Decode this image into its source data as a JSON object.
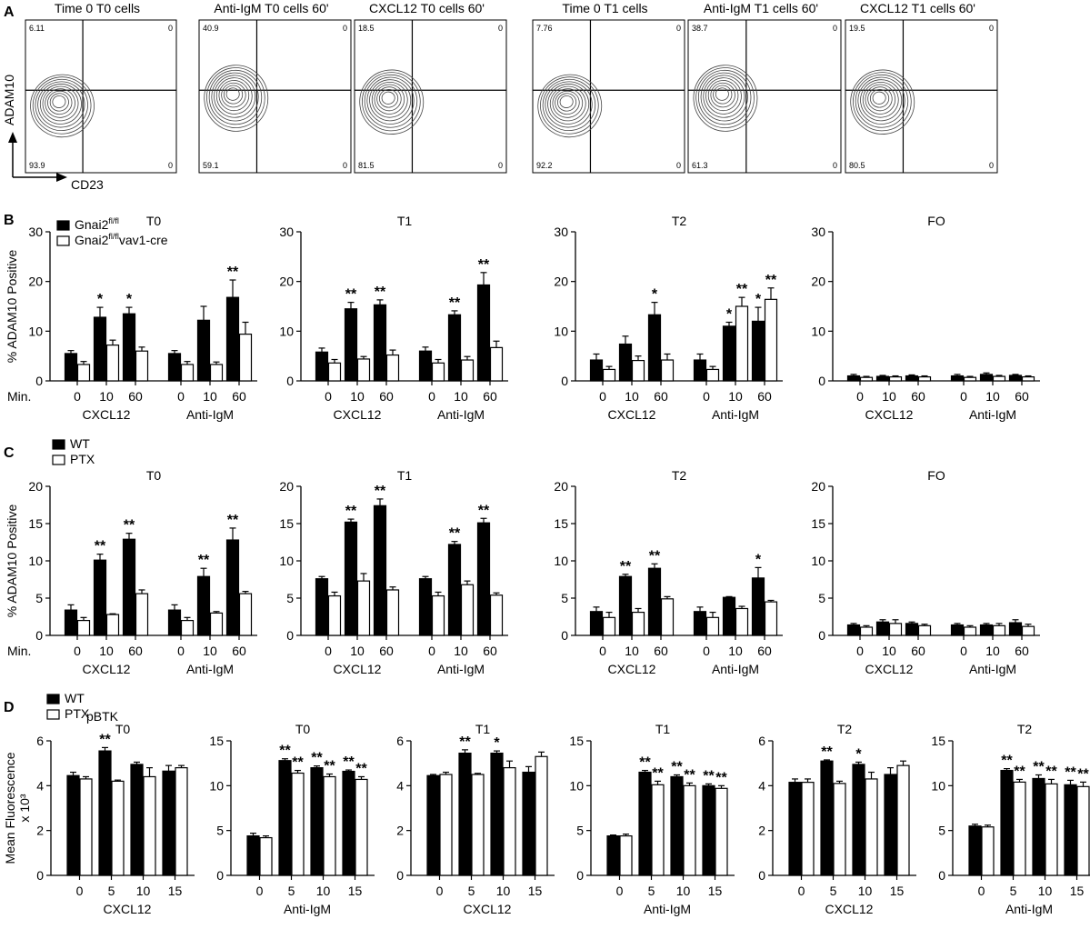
{
  "panel_letters": {
    "A": "A",
    "B": "B",
    "C": "C",
    "D": "D"
  },
  "flow": {
    "y_axis_label": "ADAM10",
    "x_axis_label": "CD23",
    "plots": [
      {
        "title": "Time 0  T0 cells",
        "ul": "6.11",
        "ur": "0",
        "ll": "93.9",
        "lr": "0",
        "contour_level": 0.35
      },
      {
        "title": "Anti-IgM T0 cells   60'",
        "ul": "40.9",
        "ur": "0",
        "ll": "59.1",
        "lr": "0",
        "contour_level": 0.55
      },
      {
        "title": "CXCL12 T0 cells   60'",
        "ul": "18.5",
        "ur": "0",
        "ll": "81.5",
        "lr": "0",
        "contour_level": 0.45
      },
      {
        "title": "Time 0   T1 cells",
        "ul": "7.76",
        "ur": "0",
        "ll": "92.2",
        "lr": "0",
        "contour_level": 0.35
      },
      {
        "title": "Anti-IgM T1 cells   60'",
        "ul": "38.7",
        "ur": "0",
        "ll": "61.3",
        "lr": "0",
        "contour_level": 0.55
      },
      {
        "title": "CXCL12 T1 cells   60'",
        "ul": "19.5",
        "ur": "0",
        "ll": "80.5",
        "lr": "0",
        "contour_level": 0.45
      }
    ]
  },
  "chart_data": [
    {
      "panel": "B",
      "type": "bar",
      "title": "T0",
      "ylabel": "% ADAM10 Positive",
      "ylim": [
        0,
        30
      ],
      "yticks": [
        0,
        10,
        20,
        30
      ],
      "row_label": "Min.",
      "categories": [
        "0",
        "10",
        "60",
        "0",
        "10",
        "60"
      ],
      "groups": [
        "CXCL12",
        "Anti-IgM"
      ],
      "series": [
        {
          "name": "Gnai2fl/fl",
          "values": [
            5.5,
            12.8,
            13.5,
            5.5,
            12.2,
            16.8
          ],
          "errors": [
            0.6,
            2,
            1.3,
            0.6,
            2.8,
            3.5
          ]
        },
        {
          "name": "Gnai2fl/flvav1-cre",
          "values": [
            3.3,
            7.2,
            6,
            3.3,
            3.3,
            9.4
          ],
          "errors": [
            0.6,
            1,
            0.8,
            0.6,
            0.5,
            2.4
          ]
        }
      ],
      "significance": [
        [
          "",
          "*",
          "*",
          "",
          "",
          "**"
        ],
        [
          "",
          "",
          "",
          "",
          "",
          ""
        ]
      ]
    },
    {
      "panel": "B",
      "type": "bar",
      "title": "T1",
      "ylabel": "",
      "ylim": [
        0,
        30
      ],
      "yticks": [
        0,
        10,
        20,
        30
      ],
      "categories": [
        "0",
        "10",
        "60",
        "0",
        "10",
        "60"
      ],
      "groups": [
        "CXCL12",
        "Anti-IgM"
      ],
      "series": [
        {
          "name": "Gnai2fl/fl",
          "values": [
            5.8,
            14.5,
            15.3,
            6,
            13.3,
            19.3
          ],
          "errors": [
            0.8,
            1.3,
            1,
            0.8,
            0.8,
            2.5
          ]
        },
        {
          "name": "Gnai2fl/flvav1-cre",
          "values": [
            3.6,
            4.4,
            5.2,
            3.6,
            4.2,
            6.7
          ],
          "errors": [
            0.7,
            0.5,
            1,
            0.7,
            0.7,
            1.3
          ]
        }
      ],
      "significance": [
        [
          "",
          "**",
          "**",
          "",
          "**",
          "**"
        ],
        [
          "",
          "",
          "",
          "",
          "",
          ""
        ]
      ]
    },
    {
      "panel": "B",
      "type": "bar",
      "title": "T2",
      "ylabel": "",
      "ylim": [
        0,
        30
      ],
      "yticks": [
        0,
        10,
        20,
        30
      ],
      "categories": [
        "0",
        "10",
        "60",
        "0",
        "10",
        "60"
      ],
      "groups": [
        "CXCL12",
        "Anti-IgM"
      ],
      "series": [
        {
          "name": "Gnai2fl/fl",
          "values": [
            4.2,
            7.4,
            13.3,
            4.2,
            11,
            12
          ],
          "errors": [
            1.2,
            1.6,
            2.5,
            1.2,
            0.8,
            2.8
          ]
        },
        {
          "name": "Gnai2fl/flvav1-cre",
          "values": [
            2.3,
            4.1,
            4.2,
            2.3,
            15,
            16.4
          ],
          "errors": [
            0.6,
            0.9,
            1.2,
            0.6,
            1.8,
            2.3
          ]
        }
      ],
      "significance": [
        [
          "",
          "",
          "*",
          "",
          "*",
          "*"
        ],
        [
          "",
          "",
          "",
          "",
          "**",
          "**"
        ]
      ]
    },
    {
      "panel": "B",
      "type": "bar",
      "title": "FO",
      "ylabel": "",
      "ylim": [
        0,
        30
      ],
      "yticks": [
        0,
        10,
        20,
        30
      ],
      "categories": [
        "0",
        "10",
        "60",
        "0",
        "10",
        "60"
      ],
      "groups": [
        "CXCL12",
        "Anti-IgM"
      ],
      "series": [
        {
          "name": "Gnai2fl/fl",
          "values": [
            1,
            0.9,
            1,
            1,
            1.3,
            1.1
          ],
          "errors": [
            0.3,
            0.2,
            0.2,
            0.3,
            0.3,
            0.2
          ]
        },
        {
          "name": "Gnai2fl/flvav1-cre",
          "values": [
            0.7,
            0.8,
            0.8,
            0.7,
            0.9,
            0.8
          ],
          "errors": [
            0.2,
            0.2,
            0.2,
            0.2,
            0.2,
            0.2
          ]
        }
      ],
      "significance": [
        [
          "",
          "",
          "",
          "",
          "",
          ""
        ],
        [
          "",
          "",
          "",
          "",
          "",
          ""
        ]
      ]
    },
    {
      "panel": "C",
      "type": "bar",
      "title": "T0",
      "ylabel": "% ADAM10 Positive",
      "ylim": [
        0,
        20
      ],
      "yticks": [
        0,
        5,
        10,
        15,
        20
      ],
      "row_label": "Min.",
      "categories": [
        "0",
        "10",
        "60",
        "0",
        "10",
        "60"
      ],
      "groups": [
        "CXCL12",
        "Anti-IgM"
      ],
      "series": [
        {
          "name": "WT",
          "values": [
            3.4,
            10.1,
            12.9,
            3.4,
            7.9,
            12.8
          ],
          "errors": [
            0.7,
            0.8,
            0.8,
            0.7,
            1.1,
            1.6
          ]
        },
        {
          "name": "PTX",
          "values": [
            2,
            2.8,
            5.6,
            2,
            3,
            5.6
          ],
          "errors": [
            0.4,
            0.1,
            0.5,
            0.4,
            0.2,
            0.3
          ]
        }
      ],
      "significance": [
        [
          "",
          "**",
          "**",
          "",
          "**",
          "**"
        ],
        [
          "",
          "",
          "",
          "",
          "",
          ""
        ]
      ]
    },
    {
      "panel": "C",
      "type": "bar",
      "title": "T1",
      "ylabel": "",
      "ylim": [
        0,
        20
      ],
      "yticks": [
        0,
        5,
        10,
        15,
        20
      ],
      "categories": [
        "0",
        "10",
        "60",
        "0",
        "10",
        "60"
      ],
      "groups": [
        "CXCL12",
        "Anti-IgM"
      ],
      "series": [
        {
          "name": "WT",
          "values": [
            7.6,
            15.2,
            17.4,
            7.6,
            12.2,
            15.1
          ],
          "errors": [
            0.3,
            0.4,
            0.9,
            0.3,
            0.4,
            0.6
          ]
        },
        {
          "name": "PTX",
          "values": [
            5.3,
            7.3,
            6.1,
            5.3,
            6.8,
            5.4
          ],
          "errors": [
            0.5,
            1,
            0.4,
            0.5,
            0.5,
            0.3
          ]
        }
      ],
      "significance": [
        [
          "",
          "**",
          "**",
          "",
          "**",
          "**"
        ],
        [
          "",
          "",
          "",
          "",
          "",
          ""
        ]
      ]
    },
    {
      "panel": "C",
      "type": "bar",
      "title": "T2",
      "ylabel": "",
      "ylim": [
        0,
        20
      ],
      "yticks": [
        0,
        5,
        10,
        15,
        20
      ],
      "categories": [
        "0",
        "10",
        "60",
        "0",
        "10",
        "60"
      ],
      "groups": [
        "CXCL12",
        "Anti-IgM"
      ],
      "series": [
        {
          "name": "WT",
          "values": [
            3.2,
            7.9,
            9,
            3.2,
            5.1,
            7.7
          ],
          "errors": [
            0.6,
            0.3,
            0.6,
            0.6,
            0.1,
            1.4
          ]
        },
        {
          "name": "PTX",
          "values": [
            2.4,
            3.1,
            4.9,
            2.4,
            3.6,
            4.5
          ],
          "errors": [
            0.7,
            0.5,
            0.3,
            0.7,
            0.3,
            0.2
          ]
        }
      ],
      "significance": [
        [
          "",
          "**",
          "**",
          "",
          "",
          "*"
        ],
        [
          "",
          "",
          "",
          "",
          "",
          ""
        ]
      ]
    },
    {
      "panel": "C",
      "type": "bar",
      "title": "FO",
      "ylabel": "",
      "ylim": [
        0,
        20
      ],
      "yticks": [
        0,
        5,
        10,
        15,
        20
      ],
      "categories": [
        "0",
        "10",
        "60",
        "0",
        "10",
        "60"
      ],
      "groups": [
        "CXCL12",
        "Anti-IgM"
      ],
      "series": [
        {
          "name": "WT",
          "values": [
            1.4,
            1.8,
            1.6,
            1.4,
            1.4,
            1.7
          ],
          "errors": [
            0.2,
            0.3,
            0.2,
            0.2,
            0.2,
            0.4
          ]
        },
        {
          "name": "PTX",
          "values": [
            1.1,
            1.6,
            1.3,
            1.1,
            1.3,
            1.2
          ],
          "errors": [
            0.2,
            0.5,
            0.2,
            0.2,
            0.3,
            0.3
          ]
        }
      ],
      "significance": [
        [
          "",
          "",
          "",
          "",
          "",
          ""
        ],
        [
          "",
          "",
          "",
          "",
          "",
          ""
        ]
      ]
    },
    {
      "panel": "D",
      "type": "bar",
      "title": "T0",
      "ylabel": "Mean Fluorescence x 10³",
      "ylim": [
        0,
        6
      ],
      "yticks": [
        0,
        2,
        4,
        6
      ],
      "categories": [
        "0",
        "5",
        "10",
        "15"
      ],
      "groups": [
        "CXCL12"
      ],
      "series": [
        {
          "name": "WT",
          "values": [
            4.45,
            5.55,
            4.95,
            4.65
          ],
          "errors": [
            0.15,
            0.15,
            0.1,
            0.25
          ]
        },
        {
          "name": "PTX",
          "values": [
            4.3,
            4.2,
            4.4,
            4.8
          ],
          "errors": [
            0.1,
            0.05,
            0.4,
            0.1
          ]
        }
      ],
      "significance": [
        [
          "",
          "**",
          "",
          ""
        ],
        [
          "",
          "",
          "",
          ""
        ]
      ]
    },
    {
      "panel": "D",
      "type": "bar",
      "title": "T0",
      "ylabel": "",
      "ylim": [
        0,
        15
      ],
      "yticks": [
        0,
        5,
        10,
        15
      ],
      "categories": [
        "0",
        "5",
        "10",
        "15"
      ],
      "groups": [
        "Anti-IgM"
      ],
      "series": [
        {
          "name": "WT",
          "values": [
            4.4,
            12.8,
            12,
            11.6
          ],
          "errors": [
            0.3,
            0.2,
            0.2,
            0.15
          ]
        },
        {
          "name": "PTX",
          "values": [
            4.2,
            11.4,
            11,
            10.7
          ],
          "errors": [
            0.2,
            0.3,
            0.3,
            0.3
          ]
        }
      ],
      "significance": [
        [
          "",
          "**",
          "**",
          "**"
        ],
        [
          "",
          "**",
          "**",
          "**"
        ]
      ]
    },
    {
      "panel": "D",
      "type": "bar",
      "title": "T1",
      "ylabel": "",
      "ylim": [
        0,
        6
      ],
      "yticks": [
        0,
        2,
        4,
        6
      ],
      "categories": [
        "0",
        "5",
        "10",
        "15"
      ],
      "groups": [
        "CXCL12"
      ],
      "series": [
        {
          "name": "WT",
          "values": [
            4.45,
            5.45,
            5.45,
            4.6
          ],
          "errors": [
            0.05,
            0.15,
            0.1,
            0.25
          ]
        },
        {
          "name": "PTX",
          "values": [
            4.5,
            4.5,
            4.8,
            5.3
          ],
          "errors": [
            0.1,
            0.05,
            0.3,
            0.2
          ]
        }
      ],
      "significance": [
        [
          "",
          "**",
          "*",
          ""
        ],
        [
          "",
          "",
          "",
          ""
        ]
      ]
    },
    {
      "panel": "D",
      "type": "bar",
      "title": "T1",
      "ylabel": "",
      "ylim": [
        0,
        15
      ],
      "yticks": [
        0,
        5,
        10,
        15
      ],
      "categories": [
        "0",
        "5",
        "10",
        "15"
      ],
      "groups": [
        "Anti-IgM"
      ],
      "series": [
        {
          "name": "WT",
          "values": [
            4.4,
            11.5,
            11,
            10
          ],
          "errors": [
            0.1,
            0.2,
            0.2,
            0.2
          ]
        },
        {
          "name": "PTX",
          "values": [
            4.4,
            10.1,
            10,
            9.7
          ],
          "errors": [
            0.2,
            0.4,
            0.3,
            0.3
          ]
        }
      ],
      "significance": [
        [
          "",
          "**",
          "**",
          "**"
        ],
        [
          "",
          "**",
          "**",
          "**"
        ]
      ]
    },
    {
      "panel": "D",
      "type": "bar",
      "title": "T2",
      "ylabel": "",
      "ylim": [
        0,
        6
      ],
      "yticks": [
        0,
        2,
        4,
        6
      ],
      "categories": [
        "0",
        "5",
        "10",
        "15"
      ],
      "groups": [
        "CXCL12"
      ],
      "series": [
        {
          "name": "WT",
          "values": [
            4.15,
            5.1,
            4.95,
            4.5
          ],
          "errors": [
            0.15,
            0.05,
            0.1,
            0.3
          ]
        },
        {
          "name": "PTX",
          "values": [
            4.15,
            4.1,
            4.3,
            4.9
          ],
          "errors": [
            0.15,
            0.1,
            0.3,
            0.2
          ]
        }
      ],
      "significance": [
        [
          "",
          "**",
          "*",
          ""
        ],
        [
          "",
          "",
          "",
          ""
        ]
      ]
    },
    {
      "panel": "D",
      "type": "bar",
      "title": "T2",
      "ylabel": "",
      "ylim": [
        0,
        15
      ],
      "yticks": [
        0,
        5,
        10,
        15
      ],
      "categories": [
        "0",
        "5",
        "10",
        "15"
      ],
      "groups": [
        "Anti-IgM"
      ],
      "series": [
        {
          "name": "WT",
          "values": [
            5.5,
            11.7,
            10.8,
            10.1
          ],
          "errors": [
            0.2,
            0.2,
            0.4,
            0.5
          ]
        },
        {
          "name": "PTX",
          "values": [
            5.4,
            10.4,
            10.2,
            9.9
          ],
          "errors": [
            0.2,
            0.3,
            0.5,
            0.5
          ]
        }
      ],
      "significance": [
        [
          "",
          "**",
          "**",
          "**"
        ],
        [
          "",
          "**",
          "**",
          "**"
        ]
      ]
    }
  ],
  "legends": {
    "B": [
      {
        "label": "Gnai2",
        "sup": "fl/fl",
        "tail": "",
        "fill": "black"
      },
      {
        "label": "Gnai2",
        "sup": "fl/fl",
        "tail": "vav1-cre",
        "fill": "white"
      }
    ],
    "C": [
      {
        "label": "WT",
        "sup": "",
        "tail": "",
        "fill": "black"
      },
      {
        "label": "PTX",
        "sup": "",
        "tail": "",
        "fill": "white"
      }
    ],
    "D": [
      {
        "label": "WT",
        "sup": "",
        "tail": "",
        "fill": "black"
      },
      {
        "label": "PTX",
        "sup": "",
        "tail": "",
        "fill": "white"
      }
    ]
  },
  "panel_d_label": "pBTK",
  "colors": {
    "bar_filled": "#000000",
    "bar_open": "#ffffff",
    "axis": "#000000",
    "contour": "#444444"
  }
}
